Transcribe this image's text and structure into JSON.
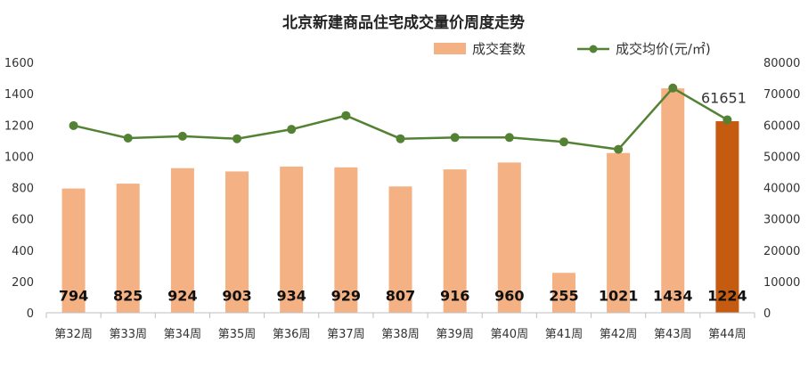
{
  "chart_data": {
    "type": "bar",
    "title": "北京新建商品住宅成交量价周度走势",
    "categories": [
      "第32周",
      "第33周",
      "第34周",
      "第35周",
      "第36周",
      "第37周",
      "第38周",
      "第39周",
      "第40周",
      "第41周",
      "第42周",
      "第43周",
      "第44周"
    ],
    "series": [
      {
        "name": "成交套数",
        "type": "bar",
        "axis": "left",
        "color": "#f4b183",
        "highlight_color": "#c55a11",
        "highlight_index": 12,
        "values": [
          794,
          825,
          924,
          903,
          934,
          929,
          807,
          916,
          960,
          255,
          1021,
          1434,
          1224
        ]
      },
      {
        "name": "成交均价(元/㎡)",
        "type": "line",
        "axis": "right",
        "color": "#548235",
        "values": [
          59800,
          55800,
          56400,
          55600,
          58600,
          63000,
          55600,
          56000,
          56000,
          54600,
          52200,
          71800,
          61651
        ]
      }
    ],
    "y_left": {
      "min": 0,
      "max": 1600,
      "step": 200,
      "ticks": [
        "0",
        "200",
        "400",
        "600",
        "800",
        "1000",
        "1200",
        "1400",
        "1600"
      ]
    },
    "y_right": {
      "min": 0,
      "max": 80000,
      "step": 10000,
      "ticks": [
        "0",
        "10000",
        "20000",
        "30000",
        "40000",
        "50000",
        "60000",
        "70000",
        "80000"
      ]
    },
    "bar_labels": [
      "794",
      "825",
      "924",
      "903",
      "934",
      "929",
      "807",
      "916",
      "960",
      "255",
      "1021",
      "1434",
      "1224"
    ],
    "annotation": {
      "index": 12,
      "text": "61651"
    },
    "legend_position": "top-right",
    "grid": false
  }
}
